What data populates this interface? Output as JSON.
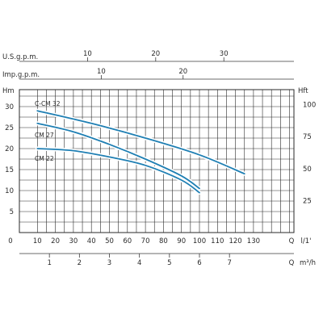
{
  "chart_data": {
    "type": "line",
    "title": "",
    "plot": {
      "x_unit_label": "Q l/1'",
      "y_left_label": "Hm",
      "y_right_label": "Hft",
      "xlim": [
        0,
        140
      ],
      "ylim": [
        0,
        35
      ],
      "grid": true,
      "x_ticks": [
        0,
        10,
        20,
        30,
        40,
        50,
        60,
        70,
        80,
        90,
        100,
        110,
        120,
        130
      ],
      "y_left_ticks": [
        5,
        10,
        15,
        20,
        25,
        30
      ],
      "y_right_ticks": [
        25,
        50,
        75,
        100
      ]
    },
    "top_scales": [
      {
        "label": "U.S.g.p.m.",
        "ticks": [
          10,
          20,
          30
        ],
        "factor": 3.785
      },
      {
        "label": "Imp.g.p.m.",
        "ticks": [
          10,
          20
        ],
        "factor": 4.546
      }
    ],
    "bottom_scale": {
      "label": "Q m³/h",
      "ticks": [
        1,
        2,
        3,
        4,
        5,
        6,
        7
      ],
      "factor": 16.667
    },
    "series": [
      {
        "name": "C-CM 32",
        "x": [
          10,
          40,
          70,
          100,
          125
        ],
        "y": [
          29,
          26,
          22.5,
          18.5,
          14
        ]
      },
      {
        "name": "CM 27",
        "x": [
          10,
          30,
          50,
          70,
          90,
          100
        ],
        "y": [
          26,
          24,
          21,
          17.5,
          13.5,
          10.5
        ]
      },
      {
        "name": "CM 22",
        "x": [
          10,
          30,
          50,
          70,
          90,
          100
        ],
        "y": [
          20,
          19.5,
          18,
          16,
          12.5,
          9.5
        ]
      }
    ],
    "style": {
      "curve_color": "#1f7fb3",
      "text_color": "#2a2a2a"
    }
  }
}
